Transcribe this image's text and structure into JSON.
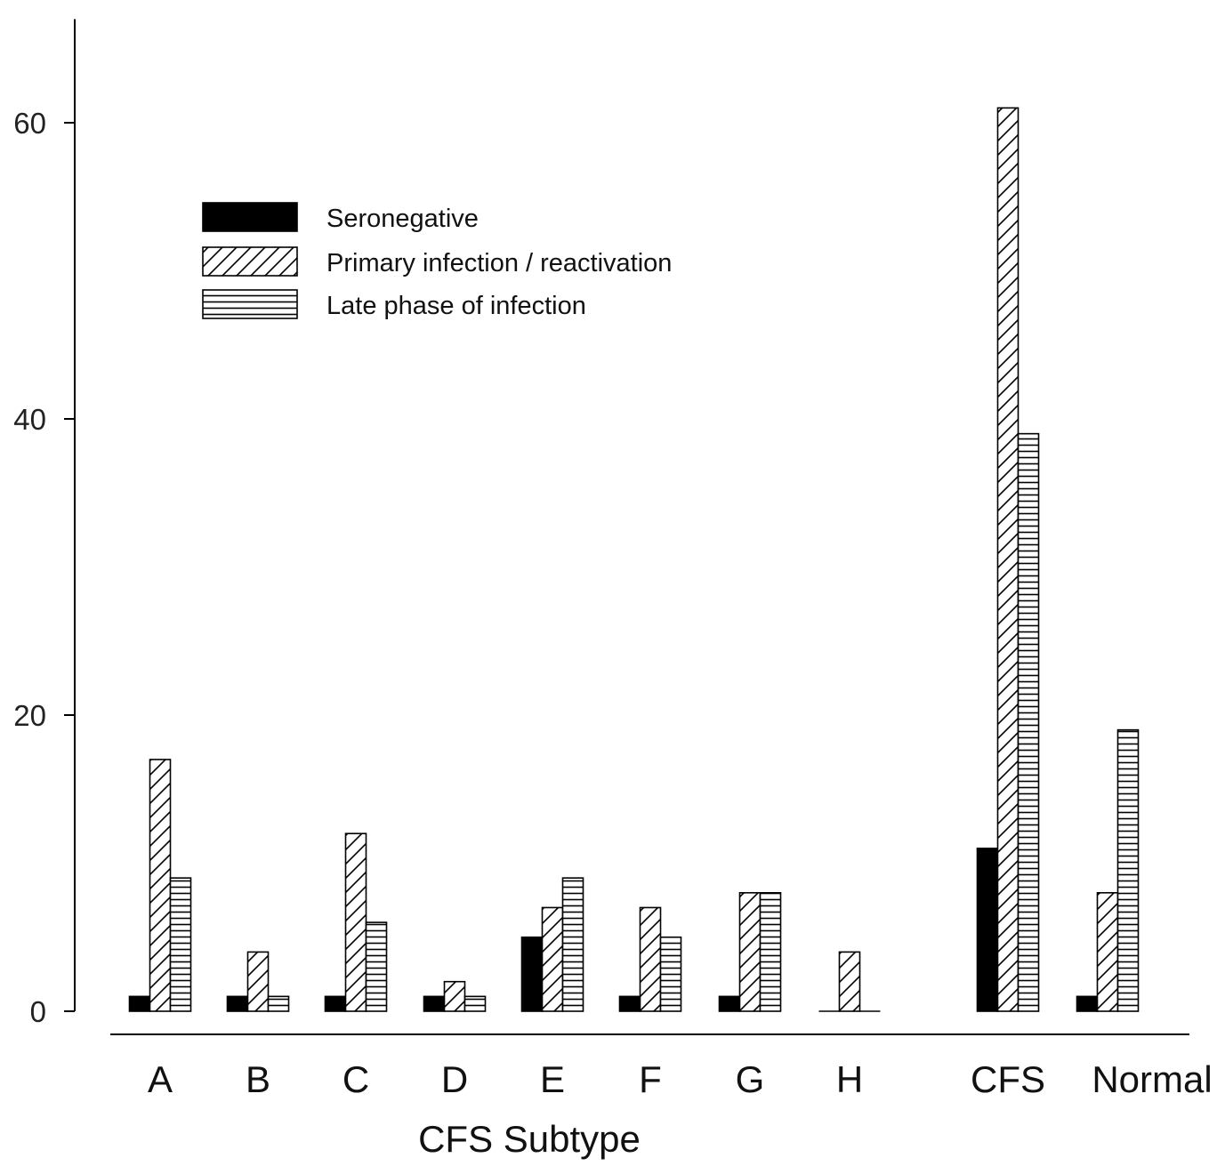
{
  "chart_data": {
    "type": "bar",
    "title": "",
    "xlabel": "CFS Subtype",
    "ylabel": "",
    "ylim": [
      0,
      67
    ],
    "yticks": [
      0,
      20,
      40,
      60
    ],
    "categories": [
      "A",
      "B",
      "C",
      "D",
      "E",
      "F",
      "G",
      "H",
      "CFS",
      "Normal"
    ],
    "series": [
      {
        "name": "Seronegative",
        "pattern": "solid",
        "color": "#000000",
        "values": [
          1,
          1,
          1,
          1,
          5,
          1,
          1,
          0,
          11,
          1
        ]
      },
      {
        "name": "Primary infection / reactivation",
        "pattern": "diagonal-hatch",
        "color": "#000000",
        "values": [
          17,
          4,
          12,
          2,
          7,
          7,
          8,
          4,
          61,
          8
        ]
      },
      {
        "name": "Late phase of infection",
        "pattern": "horizontal-hatch",
        "color": "#000000",
        "values": [
          9,
          1,
          6,
          1,
          9,
          5,
          8,
          0,
          39,
          19
        ]
      }
    ],
    "legend_position": "top-left",
    "grid": false
  }
}
